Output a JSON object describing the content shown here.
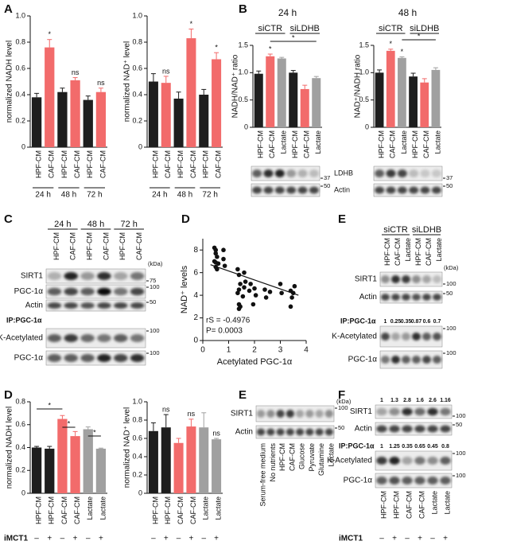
{
  "letters": [
    "A",
    "B",
    "C",
    "D",
    "E",
    "D",
    "E",
    "F"
  ],
  "chart_data": [
    {
      "type": "bar",
      "ylabel": "normalized NADH level",
      "categories": [
        "HPF-CM",
        "CAF-CM",
        "HPF-CM",
        "CAF-CM",
        "HPF-CM",
        "CAF-CM"
      ],
      "values": [
        0.38,
        0.76,
        0.42,
        0.51,
        0.36,
        0.42
      ],
      "errors": [
        0.03,
        0.06,
        0.03,
        0.02,
        0.03,
        0.03
      ],
      "colors": [
        "#1e1e1e",
        "#f26b6b",
        "#1e1e1e",
        "#f26b6b",
        "#1e1e1e",
        "#f26b6b"
      ],
      "marks": [
        null,
        "*",
        null,
        "ns",
        null,
        "ns"
      ],
      "groups": [
        "24 h",
        "48 h",
        "72 h"
      ],
      "ylim": [
        0,
        1
      ],
      "yticks": [
        0,
        0.2,
        0.4,
        0.6,
        0.8,
        {
          "value": 1,
          "label": "1.0"
        }
      ]
    },
    {
      "type": "bar",
      "ylabel": "normalized NAD⁺ level",
      "categories": [
        "HPF-CM",
        "CAF-CM",
        "HPF-CM",
        "CAF-CM",
        "HPF-CM",
        "CAF-CM"
      ],
      "values": [
        0.5,
        0.49,
        0.37,
        0.83,
        0.4,
        0.67
      ],
      "errors": [
        0.06,
        0.05,
        0.05,
        0.07,
        0.04,
        0.05
      ],
      "colors": [
        "#1e1e1e",
        "#f26b6b",
        "#1e1e1e",
        "#f26b6b",
        "#1e1e1e",
        "#f26b6b"
      ],
      "marks": [
        null,
        "ns",
        null,
        "*",
        null,
        "*"
      ],
      "groups": [
        "24 h",
        "48 h",
        "72 h"
      ],
      "ylim": [
        0,
        1
      ],
      "yticks": [
        0,
        0.2,
        0.4,
        0.6,
        0.8,
        {
          "value": 1,
          "label": "1.0"
        }
      ]
    },
    {
      "type": "bar",
      "title": "24 h",
      "ylabel": "NADH/NAD⁺ ratio",
      "categories": [
        "HPF-CM",
        "CAF-CM",
        "Lactate",
        "HPF-CM",
        "CAF-CM",
        "Lactate"
      ],
      "values": [
        0.98,
        1.3,
        1.26,
        1.0,
        0.7,
        0.9
      ],
      "errors": [
        0.05,
        0.04,
        0.02,
        0.04,
        0.07,
        0.03
      ],
      "colors": [
        "#1e1e1e",
        "#f26b6b",
        "#a0a0a0",
        "#1e1e1e",
        "#f26b6b",
        "#a0a0a0"
      ],
      "marks": [
        null,
        "*",
        null,
        null,
        null,
        null
      ],
      "groups": [
        "siCTR",
        "siLDHB"
      ],
      "brackets": [
        "*"
      ],
      "ylim": [
        0,
        1.5
      ],
      "yticks": [
        0,
        0.5,
        {
          "value": 1,
          "label": "1.0"
        },
        1.5
      ]
    },
    {
      "type": "bar",
      "title": "48 h",
      "ylabel": "NAD⁺/NADH ratio",
      "categories": [
        "HPF-CM",
        "CAF-CM",
        "Lactate",
        "HPF-CM",
        "CAF-CM",
        "Lactate"
      ],
      "values": [
        1.0,
        1.4,
        1.27,
        0.93,
        0.82,
        1.05
      ],
      "errors": [
        0.05,
        0.03,
        0.02,
        0.06,
        0.07,
        0.04
      ],
      "colors": [
        "#1e1e1e",
        "#f26b6b",
        "#a0a0a0",
        "#1e1e1e",
        "#f26b6b",
        "#a0a0a0"
      ],
      "marks": [
        null,
        "*",
        "*",
        null,
        null,
        null
      ],
      "groups": [
        "siCTR",
        "siLDHB"
      ],
      "brackets": [
        "*"
      ],
      "ylim": [
        0,
        1.5
      ],
      "yticks": [
        0,
        0.5,
        {
          "value": 1,
          "label": "1.0"
        },
        1.5
      ]
    },
    {
      "type": "scatter",
      "xlabel": "Acetylated PGC-1α",
      "ylabel": "NAD⁺ levels",
      "x": [
        0.45,
        0.5,
        0.55,
        0.45,
        0.5,
        0.6,
        0.5,
        0.55,
        0.5,
        0.8,
        0.8,
        0.85,
        1.35,
        1.4,
        1.45,
        1.4,
        1.35,
        1.4,
        1.45,
        1.4,
        1.6,
        1.65,
        1.6,
        1.55,
        1.85,
        1.8,
        2.0,
        2.05,
        1.95,
        2.4,
        2.45,
        2.6,
        3.0,
        3.05,
        3.4,
        3.45,
        3.4,
        3.5,
        3.55
      ],
      "y": [
        8.2,
        8.0,
        7.4,
        7.0,
        6.9,
        6.8,
        6.5,
        6.3,
        7.7,
        8.0,
        7.2,
        6.6,
        6.3,
        5.8,
        5.0,
        4.5,
        4.2,
        3.2,
        3.0,
        2.8,
        6.0,
        5.2,
        4.7,
        3.9,
        5.0,
        4.4,
        4.6,
        4.0,
        3.2,
        4.5,
        3.8,
        4.3,
        5.0,
        4.2,
        4.4,
        3.8,
        3.0,
        4.2,
        4.8
      ],
      "fit": {
        "x": [
          0.3,
          3.7
        ],
        "y": [
          6.7,
          4.0
        ]
      },
      "annotations": [
        "rS = -0.4976",
        "P= 0.0003"
      ],
      "xlim": [
        0,
        4
      ],
      "xticks": [
        0,
        1,
        2,
        3,
        4
      ],
      "ylim": [
        0,
        9
      ],
      "yticks": [
        0,
        2,
        4,
        6,
        8
      ]
    },
    {
      "type": "bar",
      "ylabel": "normalized NADH level",
      "categories": [
        "HPF-CM",
        "HPF-CM",
        "CAF-CM",
        "CAF-CM",
        "Lactate",
        "Lactate"
      ],
      "values": [
        0.4,
        0.39,
        0.65,
        0.5,
        0.56,
        0.39
      ],
      "errors": [
        0.01,
        0.02,
        0.03,
        0.04,
        0.02,
        0.005
      ],
      "colors": [
        "#1e1e1e",
        "#1e1e1e",
        "#f26b6b",
        "#f26b6b",
        "#a0a0a0",
        "#a0a0a0"
      ],
      "brackets": [
        "*",
        "*",
        "*"
      ],
      "treatment": {
        "label": "iMCT1",
        "signs": [
          "–",
          "+",
          "–",
          "+",
          "–",
          "+"
        ]
      },
      "ylim": [
        0,
        0.8
      ],
      "yticks": [
        0,
        0.2,
        0.4,
        0.6,
        0.8
      ]
    },
    {
      "type": "bar",
      "ylabel": "normalized NAD⁺ level",
      "categories": [
        "HPF-CM",
        "HPF-CM",
        "CAF-CM",
        "CAF-CM",
        "Lactate",
        "Lactate"
      ],
      "values": [
        0.68,
        0.72,
        0.55,
        0.73,
        0.72,
        0.59
      ],
      "errors": [
        0.09,
        0.14,
        0.05,
        0.08,
        0.16,
        0.01
      ],
      "colors": [
        "#1e1e1e",
        "#1e1e1e",
        "#f26b6b",
        "#f26b6b",
        "#a0a0a0",
        "#a0a0a0"
      ],
      "marks": [
        null,
        "ns",
        null,
        "ns",
        null,
        "ns"
      ],
      "treatment": {
        "signs": [
          "–",
          "+",
          "–",
          "+",
          "–",
          "+"
        ]
      },
      "ylim": [
        0,
        1
      ],
      "yticks": [
        0,
        0.2,
        0.4,
        0.6,
        0.8,
        {
          "value": 1,
          "label": "1.0"
        }
      ]
    }
  ],
  "blots": {
    "B": {
      "rows": [
        {
          "label": "LDHB",
          "markers": [
            37,
            37
          ]
        },
        {
          "label": "Actin",
          "markers": [
            50,
            50
          ]
        }
      ]
    },
    "C": {
      "unit": "(kDa)",
      "groups": [
        "24 h",
        "48 h",
        "72 h"
      ],
      "lanes": [
        "HPF-CM",
        "CAF-CM",
        "HPF-CM",
        "CAF-CM",
        "HPF-CM",
        "CAF-CM"
      ],
      "rows": [
        {
          "label": "SIRT1",
          "marker": 75
        },
        {
          "label": "PGC-1α",
          "marker": 100
        },
        {
          "label": "Actin",
          "marker": 50
        }
      ],
      "ip_label": "IP:PGC-1α",
      "ip_rows": [
        {
          "label": "K-Acetylated",
          "marker": 100
        },
        {
          "label": "PGC-1α",
          "marker": 100
        }
      ]
    },
    "E_top": {
      "unit": "(kDa)",
      "groups": [
        "siCTR",
        "siLDHB"
      ],
      "lanes": [
        "HPF-CM",
        "CAF-CM",
        "Lactate",
        "HPF-CM",
        "CAF-CM",
        "Lactate"
      ],
      "rows": [
        {
          "label": "SIRT1",
          "marker": 100
        },
        {
          "label": "Actin",
          "marker": 50
        }
      ],
      "ip_label": "IP:PGC-1α",
      "ip_quant": [
        1,
        0.25,
        0.35,
        0.87,
        0.6,
        0.7
      ],
      "ip_rows": [
        {
          "label": "K-Acetylated",
          "marker": 100
        },
        {
          "label": "PGC-1α",
          "marker": 100
        }
      ]
    },
    "E_bottom": {
      "unit": "(kDa)",
      "lanes": [
        "Serum-free medium",
        "No nutrients",
        "HPF-CM",
        "CAF-CM",
        "Glucose",
        "Pyruvate",
        "Glutamine",
        "Lactate"
      ],
      "rows": [
        {
          "label": "SIRT1",
          "marker": 100
        },
        {
          "label": "Actin",
          "marker": 50
        }
      ]
    },
    "F": {
      "quant": [
        1,
        1.3,
        2.8,
        1.6,
        2.6,
        1.16
      ],
      "rows": [
        {
          "label": "SIRT1",
          "marker": 100
        },
        {
          "label": "Actin",
          "marker": 50
        }
      ],
      "ip_label": "IP:PGC-1α",
      "ip_quant": [
        1,
        1.25,
        0.35,
        0.65,
        0.45,
        0.8
      ],
      "ip_rows": [
        {
          "label": "K-Acetylated",
          "marker": 100
        },
        {
          "label": "PGC-1α",
          "marker": 100
        }
      ],
      "lanes": [
        "HPF-CM",
        "HPF-CM",
        "CAF-CM",
        "CAF-CM",
        "Lactate",
        "Lactate"
      ],
      "treatment": {
        "label": "iMCT1",
        "signs": [
          "–",
          "+",
          "–",
          "+",
          "–",
          "+"
        ]
      }
    }
  }
}
